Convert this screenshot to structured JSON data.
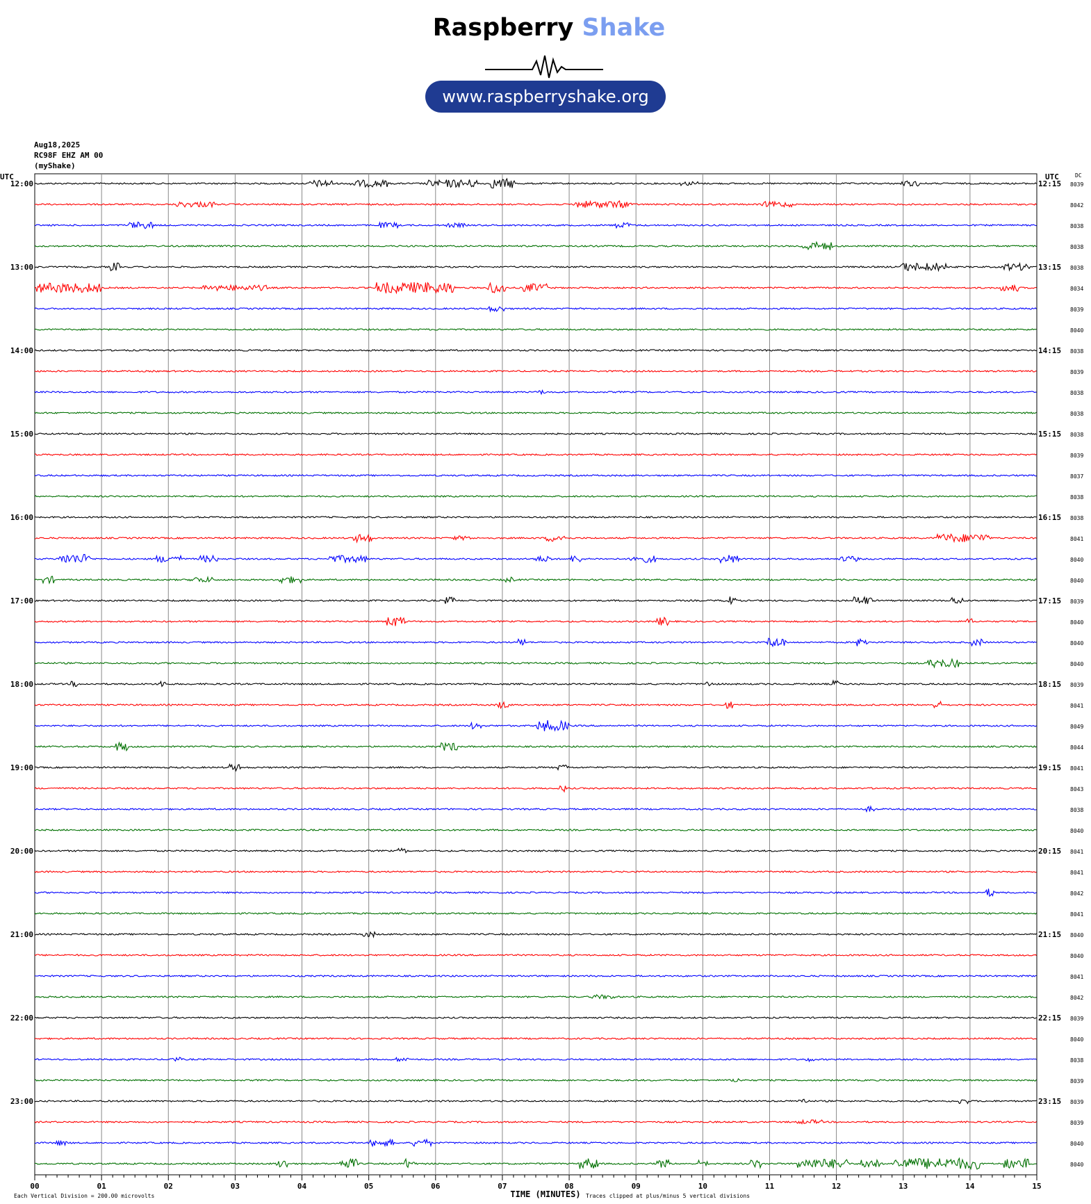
{
  "header": {
    "brand_part1": "Raspberry",
    "brand_part2": "Shake",
    "url": "www.raspberryshake.org"
  },
  "info": {
    "date": "Aug18,2025",
    "station": "RC98F EHZ AM 00",
    "network": "(myShake)"
  },
  "chart_data": {
    "type": "line",
    "title": "",
    "xlabel": "TIME (MINUTES)",
    "left_axis_label": "UTC",
    "right_axis_label": "UTC",
    "dc_label": "DC",
    "xlim": [
      0,
      15
    ],
    "x_tick_labels": [
      "00",
      "01",
      "02",
      "03",
      "04",
      "05",
      "06",
      "07",
      "08",
      "09",
      "10",
      "11",
      "12",
      "13",
      "14",
      "15"
    ],
    "row_minutes": 15,
    "trace_colors": [
      "#000000",
      "#ff0000",
      "#0000ff",
      "#007000"
    ],
    "left_hour_labels": [
      "12:00",
      "13:00",
      "14:00",
      "15:00",
      "16:00",
      "17:00",
      "18:00",
      "19:00",
      "20:00",
      "21:00",
      "22:00",
      "23:00"
    ],
    "right_hour_labels": [
      "12:15",
      "13:15",
      "14:15",
      "15:15",
      "16:15",
      "17:15",
      "18:15",
      "19:15",
      "20:15",
      "21:15",
      "22:15",
      "23:15"
    ],
    "dc_values": [
      "8039",
      "8042",
      "8038",
      "8038",
      "8038",
      "8034",
      "8039",
      "8040",
      "8038",
      "8039",
      "8038",
      "8038",
      "8038",
      "8039",
      "8037",
      "8038",
      "8038",
      "8041",
      "8040",
      "8040",
      "8039",
      "8040",
      "8040",
      "8040",
      "8039",
      "8041",
      "8049",
      "8044",
      "8041",
      "8043",
      "8038",
      "8040",
      "8041",
      "8041",
      "8042",
      "8041",
      "8040",
      "8040",
      "8041",
      "8042",
      "8039",
      "8040",
      "8038",
      "8039",
      "8039",
      "8039",
      "8040",
      "8040"
    ],
    "events": [
      [
        [
          4.3,
          0.3,
          5
        ],
        [
          5.0,
          0.5,
          5
        ],
        [
          6.0,
          0.2,
          5
        ],
        [
          6.4,
          0.4,
          6
        ],
        [
          7.0,
          0.3,
          7
        ],
        [
          9.8,
          0.2,
          3
        ],
        [
          13.1,
          0.2,
          4
        ]
      ],
      [
        [
          2.4,
          0.5,
          4
        ],
        [
          8.5,
          0.8,
          5
        ],
        [
          11.1,
          0.4,
          4
        ]
      ],
      [
        [
          1.6,
          0.3,
          5
        ],
        [
          5.3,
          0.2,
          4
        ],
        [
          6.3,
          0.2,
          3
        ],
        [
          8.8,
          0.2,
          4
        ]
      ],
      [
        [
          11.7,
          0.4,
          6
        ]
      ],
      [
        [
          1.2,
          0.05,
          6
        ],
        [
          13.3,
          0.6,
          6
        ],
        [
          14.7,
          0.3,
          5
        ]
      ],
      [
        [
          0.5,
          0.9,
          7
        ],
        [
          3.0,
          0.9,
          4
        ],
        [
          5.7,
          1.1,
          8
        ],
        [
          6.9,
          0.2,
          8
        ],
        [
          7.5,
          0.3,
          6
        ],
        [
          14.6,
          0.2,
          5
        ]
      ],
      [
        [
          6.9,
          0.2,
          4
        ]
      ],
      [],
      [],
      [],
      [
        [
          7.6,
          0.05,
          3
        ]
      ],
      [],
      [],
      [],
      [],
      [],
      [],
      [
        [
          4.9,
          0.2,
          6
        ],
        [
          6.4,
          0.2,
          3
        ],
        [
          7.8,
          0.2,
          5
        ],
        [
          13.9,
          0.7,
          6
        ]
      ],
      [
        [
          0.6,
          0.4,
          7
        ],
        [
          2.0,
          0.3,
          5
        ],
        [
          2.6,
          0.2,
          5
        ],
        [
          4.7,
          0.5,
          5
        ],
        [
          7.6,
          0.2,
          4
        ],
        [
          8.1,
          0.1,
          5
        ],
        [
          9.1,
          0.3,
          5
        ],
        [
          10.4,
          0.2,
          6
        ],
        [
          12.2,
          0.2,
          4
        ]
      ],
      [
        [
          0.2,
          0.1,
          5
        ],
        [
          2.5,
          0.3,
          4
        ],
        [
          3.8,
          0.3,
          5
        ],
        [
          7.1,
          0.1,
          4
        ]
      ],
      [
        [
          6.2,
          0.1,
          5
        ],
        [
          10.4,
          0.1,
          6
        ],
        [
          12.4,
          0.2,
          6
        ],
        [
          13.8,
          0.1,
          5
        ]
      ],
      [
        [
          5.4,
          0.2,
          7
        ],
        [
          9.4,
          0.1,
          6
        ],
        [
          14.0,
          0.03,
          4
        ]
      ],
      [
        [
          7.3,
          0.05,
          5
        ],
        [
          11.1,
          0.2,
          7
        ],
        [
          12.4,
          0.1,
          6
        ],
        [
          14.1,
          0.1,
          5
        ]
      ],
      [
        [
          13.6,
          0.4,
          6
        ]
      ],
      [
        [
          0.6,
          0.05,
          4
        ],
        [
          1.9,
          0.05,
          5
        ],
        [
          10.1,
          0.05,
          4
        ],
        [
          12.0,
          0.03,
          5
        ]
      ],
      [
        [
          7.0,
          0.1,
          5
        ],
        [
          10.4,
          0.05,
          5
        ],
        [
          13.5,
          0.05,
          5
        ]
      ],
      [
        [
          6.6,
          0.1,
          5
        ],
        [
          7.7,
          0.3,
          8
        ],
        [
          7.9,
          0.1,
          6
        ]
      ],
      [
        [
          1.3,
          0.1,
          6
        ],
        [
          6.2,
          0.2,
          6
        ]
      ],
      [
        [
          3.0,
          0.1,
          5
        ],
        [
          7.9,
          0.1,
          4
        ]
      ],
      [
        [
          7.9,
          0.05,
          5
        ]
      ],
      [
        [
          12.5,
          0.05,
          4
        ]
      ],
      [],
      [
        [
          5.5,
          0.05,
          4
        ]
      ],
      [],
      [
        [
          14.3,
          0.05,
          6
        ]
      ],
      [],
      [
        [
          5.0,
          0.1,
          4
        ]
      ],
      [],
      [],
      [
        [
          8.5,
          0.3,
          3
        ]
      ],
      [],
      [],
      [
        [
          2.1,
          0.1,
          3
        ],
        [
          5.5,
          0.1,
          3
        ],
        [
          11.6,
          0.05,
          3
        ]
      ],
      [
        [
          10.5,
          0.1,
          3
        ]
      ],
      [
        [
          11.5,
          0.05,
          4
        ],
        [
          13.9,
          0.05,
          4
        ]
      ],
      [
        [
          11.6,
          0.3,
          3
        ]
      ],
      [
        [
          0.4,
          0.1,
          4
        ],
        [
          5.2,
          0.3,
          5
        ],
        [
          5.8,
          0.2,
          5
        ]
      ],
      [
        [
          3.7,
          0.1,
          6
        ],
        [
          4.7,
          0.2,
          7
        ],
        [
          5.6,
          0.1,
          7
        ],
        [
          8.3,
          0.2,
          8
        ],
        [
          9.4,
          0.1,
          6
        ],
        [
          10.0,
          0.05,
          5
        ],
        [
          10.8,
          0.1,
          6
        ],
        [
          11.8,
          0.7,
          7
        ],
        [
          12.5,
          0.2,
          7
        ],
        [
          13.5,
          1.2,
          8
        ],
        [
          14.7,
          0.3,
          7
        ]
      ]
    ]
  },
  "footer": {
    "left_note": "Each Vertical Division =  200.00 microvolts",
    "right_note": "Traces clipped at plus/minus 5 vertical divisions"
  }
}
